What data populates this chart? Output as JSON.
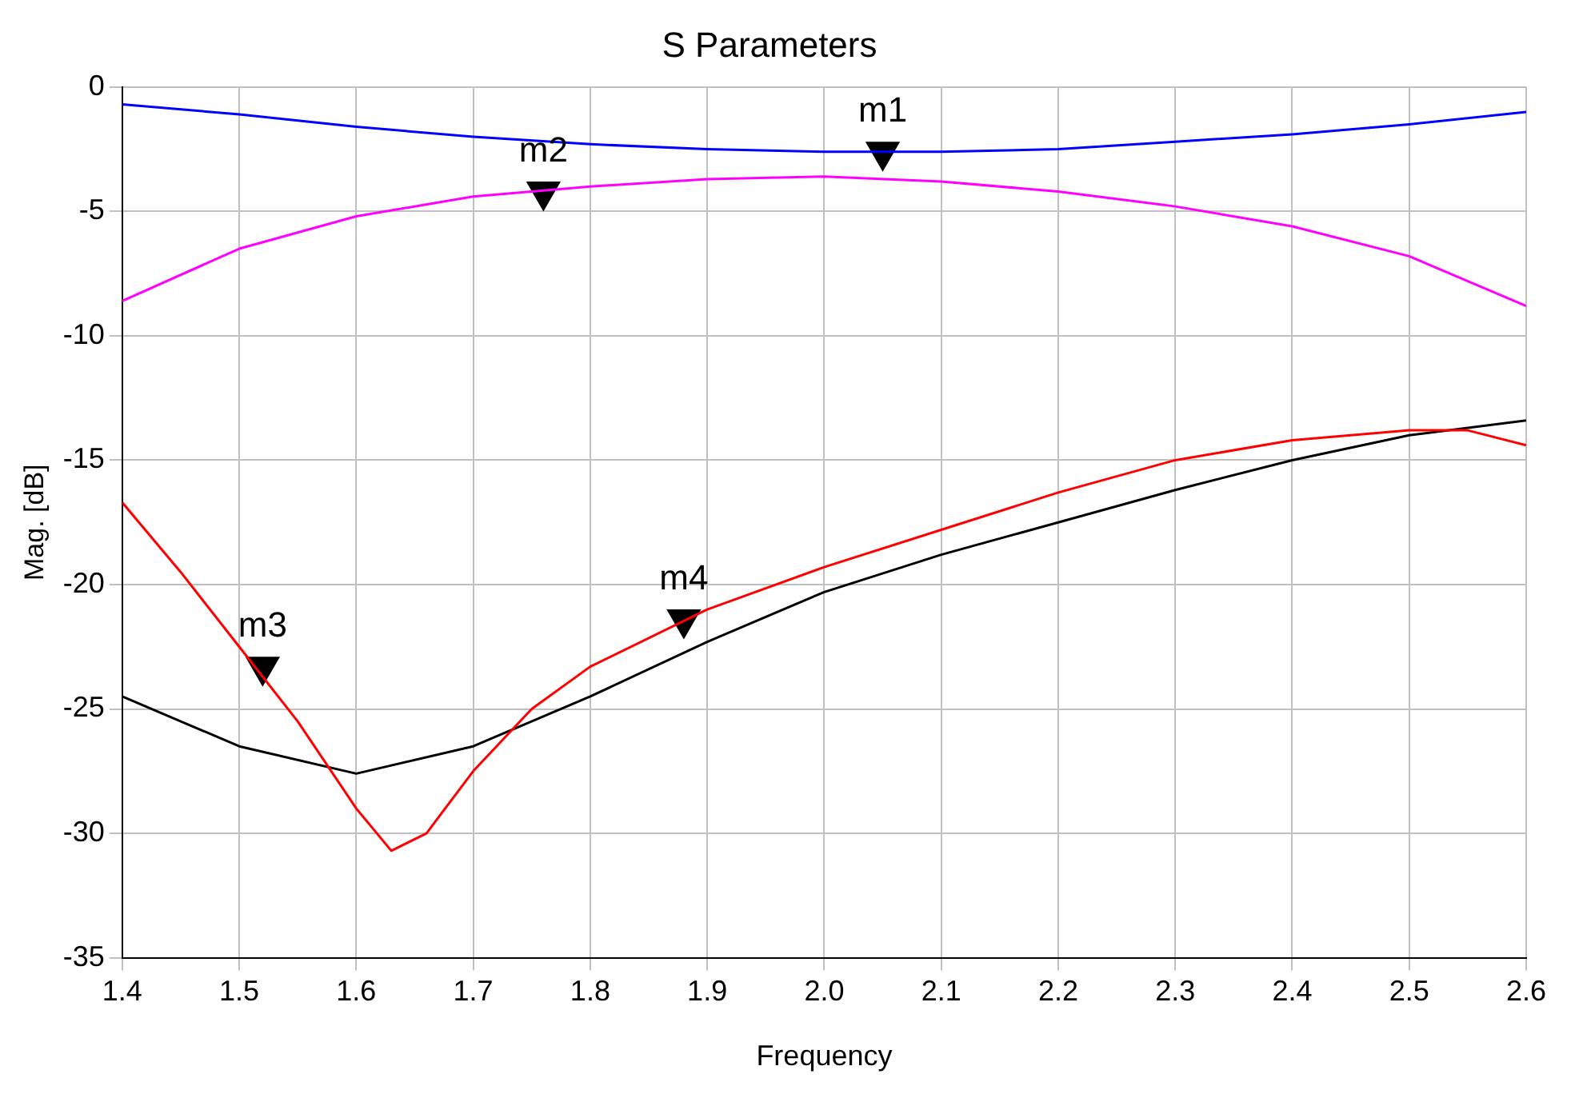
{
  "chart_data": {
    "type": "line",
    "title": "S Parameters",
    "xlabel": "Frequency",
    "ylabel": "Mag. [dB]",
    "xlim": [
      1.4,
      2.6
    ],
    "xticks": [
      1.4,
      1.5,
      1.6,
      1.7,
      1.8,
      1.9,
      {
        "value": 2,
        "label": "2.0"
      },
      2.1,
      2.2,
      2.3,
      2.4,
      2.5,
      2.6
    ],
    "ylim": [
      -35,
      0
    ],
    "yticks": [
      -35,
      -30,
      -25,
      -20,
      -15,
      -10,
      -5,
      0
    ],
    "grid": true,
    "legend": false,
    "marker": "none",
    "line_style": "solid",
    "series": [
      {
        "color": "#0000ff",
        "x": [
          1.4,
          1.5,
          1.6,
          1.7,
          1.8,
          1.9,
          2.0,
          2.1,
          2.2,
          2.3,
          2.4,
          2.5,
          2.6
        ],
        "values": [
          -0.7,
          -1.1,
          -1.6,
          -2.0,
          -2.3,
          -2.5,
          -2.6,
          -2.6,
          -2.5,
          -2.2,
          -1.9,
          -1.5,
          -1.0
        ]
      },
      {
        "color": "#ff00ff",
        "x": [
          1.4,
          1.5,
          1.6,
          1.7,
          1.8,
          1.9,
          2.0,
          2.1,
          2.2,
          2.3,
          2.4,
          2.5,
          2.6
        ],
        "values": [
          -8.6,
          -6.5,
          -5.2,
          -4.4,
          -4.0,
          -3.7,
          -3.6,
          -3.8,
          -4.2,
          -4.8,
          -5.6,
          -6.8,
          -8.8
        ]
      },
      {
        "color": "#ff0000",
        "x": [
          1.4,
          1.45,
          1.5,
          1.55,
          1.6,
          1.63,
          1.66,
          1.7,
          1.75,
          1.8,
          1.9,
          2.0,
          2.1,
          2.2,
          2.3,
          2.4,
          2.5,
          2.55,
          2.6
        ],
        "values": [
          -16.7,
          -19.5,
          -22.5,
          -25.5,
          -29,
          -30.7,
          -30,
          -27.5,
          -25,
          -23.3,
          -21,
          -19.3,
          -17.8,
          -16.3,
          -15,
          -14.2,
          -13.8,
          -13.8,
          -14.4
        ]
      },
      {
        "color": "#000000",
        "x": [
          1.4,
          1.5,
          1.6,
          1.7,
          1.8,
          1.9,
          2.0,
          2.1,
          2.2,
          2.3,
          2.4,
          2.5,
          2.6
        ],
        "values": [
          -24.5,
          -26.5,
          -27.6,
          -26.5,
          -24.5,
          -22.3,
          -20.3,
          -18.8,
          -17.5,
          -16.2,
          -15.0,
          -14.0,
          -13.4
        ]
      },
      {
        "type": "scatter",
        "marker": "triangle",
        "color": "#000000",
        "x": [
          2.05,
          1.76,
          1.52,
          1.88
        ],
        "values": [
          -2.6,
          -4.2,
          -23.3,
          -21.4
        ]
      }
    ],
    "annotations": [
      {
        "text": "m1",
        "x": 2.05,
        "y": -2.6
      },
      {
        "text": "m2",
        "x": 1.76,
        "y": -4.2
      },
      {
        "text": "m3",
        "x": 1.52,
        "y": -23.3
      },
      {
        "text": "m4",
        "x": 1.88,
        "y": -21.4
      }
    ]
  }
}
